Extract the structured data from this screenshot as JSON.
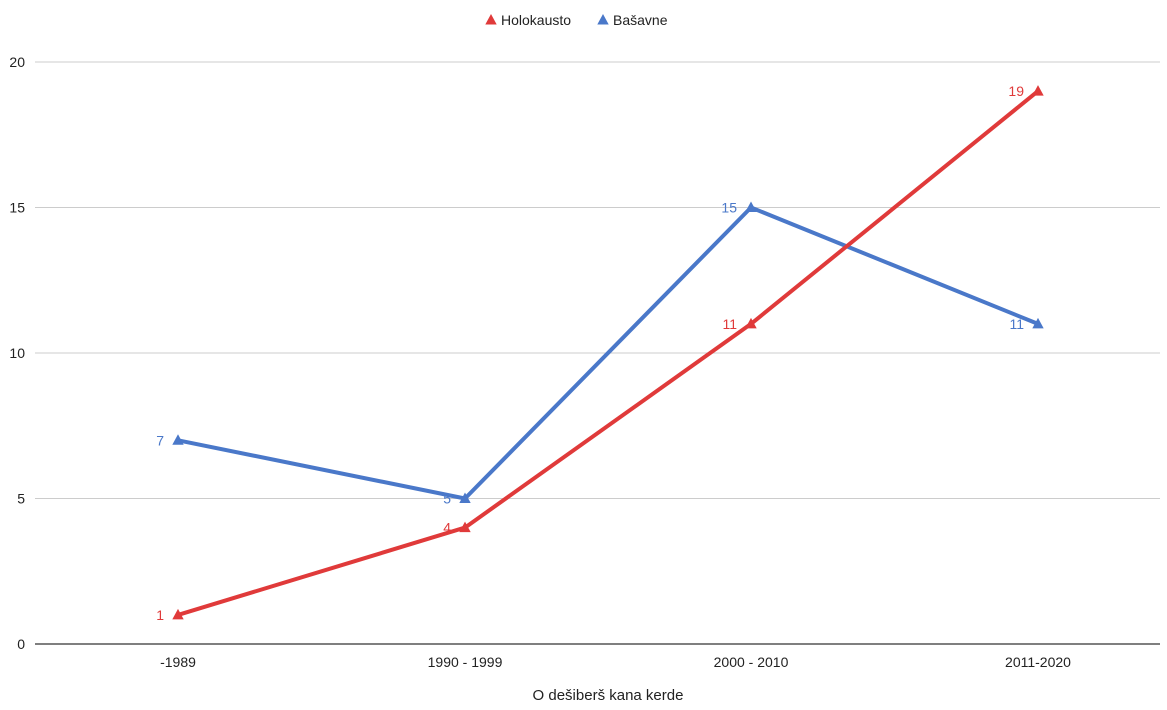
{
  "chart_data": {
    "type": "line",
    "categories": [
      "-1989",
      "1990 - 1999",
      "2000 - 2010",
      "2011-2020"
    ],
    "series": [
      {
        "name": "Holokausto",
        "values": [
          1,
          4,
          11,
          19
        ],
        "color": "#e03a3a",
        "marker": "triangle"
      },
      {
        "name": "Bašavne",
        "values": [
          7,
          5,
          15,
          11
        ],
        "color": "#4a78c9",
        "marker": "triangle"
      }
    ],
    "xlabel": "O dešiberš kana kerde",
    "ylabel": "",
    "ylim": [
      0,
      20
    ],
    "yticks": [
      0,
      5,
      10,
      15,
      20
    ],
    "grid": true,
    "legend_position": "top",
    "data_labels": true
  }
}
